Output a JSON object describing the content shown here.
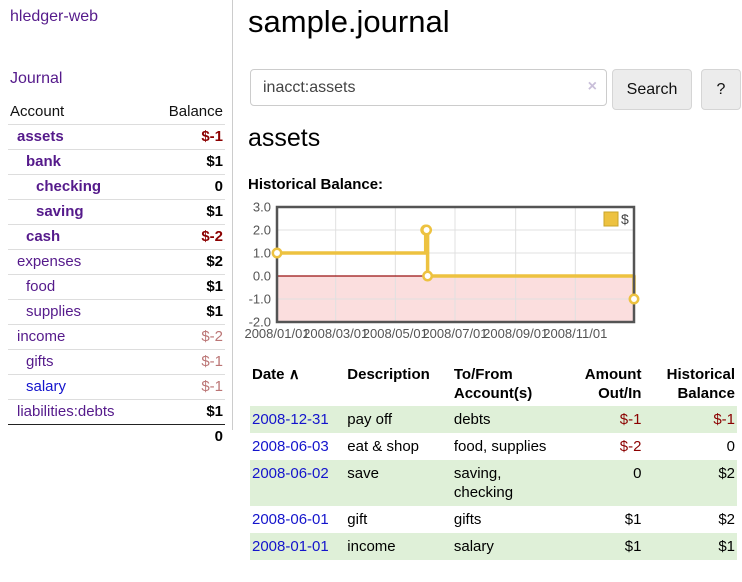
{
  "app": {
    "title": "hledger-web"
  },
  "sidebar": {
    "journal_link": "Journal",
    "accounts": {
      "col_account": "Account",
      "col_balance": "Balance",
      "rows": [
        {
          "name": "assets",
          "balance": "$-1",
          "indent": 1,
          "bold": true,
          "balance_style": "neg-strong"
        },
        {
          "name": "bank",
          "balance": "$1",
          "indent": 2,
          "bold": true,
          "balance_style": "pos"
        },
        {
          "name": "checking",
          "balance": "0",
          "indent": 3,
          "bold": true,
          "balance_style": "pos"
        },
        {
          "name": "saving",
          "balance": "$1",
          "indent": 3,
          "bold": true,
          "balance_style": "pos"
        },
        {
          "name": "cash",
          "balance": "$-2",
          "indent": 2,
          "bold": true,
          "balance_style": "neg-strong"
        },
        {
          "name": "expenses",
          "balance": "$2",
          "indent": 1,
          "bold": false,
          "balance_style": "pos"
        },
        {
          "name": "food",
          "balance": "$1",
          "indent": 2,
          "bold": false,
          "balance_style": "pos"
        },
        {
          "name": "supplies",
          "balance": "$1",
          "indent": 2,
          "bold": false,
          "balance_style": "pos"
        },
        {
          "name": "income",
          "balance": "$-2",
          "indent": 1,
          "bold": false,
          "balance_style": "neg-soft"
        },
        {
          "name": "gifts",
          "balance": "$-1",
          "indent": 2,
          "bold": false,
          "balance_style": "neg-soft"
        },
        {
          "name": "salary",
          "balance": "$-1",
          "indent": 2,
          "bold": false,
          "balance_style": "neg-soft",
          "link_color": "blue"
        },
        {
          "name": "liabilities:debts",
          "balance": "$1",
          "indent": 1,
          "bold": false,
          "balance_style": "pos"
        }
      ],
      "total": "0"
    }
  },
  "main": {
    "title": "sample.journal",
    "search": {
      "value": "inacct:assets",
      "clear_icon": "×",
      "search_button": "Search",
      "help_button": "?"
    },
    "account_heading": "assets",
    "section_label": "Historical Balance:"
  },
  "chart_data": {
    "type": "line",
    "step": true,
    "title": "Historical Balance:",
    "series": [
      {
        "name": "$",
        "color": "#edc240",
        "points": [
          [
            "2008-01-01",
            1
          ],
          [
            "2008-06-01",
            2
          ],
          [
            "2008-06-02",
            2
          ],
          [
            "2008-06-03",
            0
          ],
          [
            "2008-12-31",
            -1
          ]
        ]
      }
    ],
    "xlim": [
      "2008-01-01",
      "2008-12-31"
    ],
    "x_ticks": [
      "2008/01/01",
      "2008/03/01",
      "2008/05/01",
      "2008/07/01",
      "2008/09/01",
      "2008/11/01"
    ],
    "ylim": [
      -2,
      3
    ],
    "y_tick_step": 1,
    "y_tick_labels": [
      "-2.0",
      "-1.0",
      "0.0",
      "1.0",
      "2.0",
      "3.0"
    ],
    "grid": true,
    "legend": {
      "label": "$",
      "position": "top-right"
    },
    "negative_region_fill": "#fbdede",
    "zero_line_color": "#991111",
    "axis_label_color": "#545454"
  },
  "register": {
    "col_date": "Date",
    "sort_icon": "∧",
    "col_description": "Description",
    "col_accounts": "To/From Account(s)",
    "col_amount": "Amount Out/In",
    "col_balance": "Historical Balance",
    "rows": [
      {
        "date": "2008-12-31",
        "description": "pay off",
        "accounts": "debts",
        "amount": "$-1",
        "balance": "$-1",
        "amount_neg": true,
        "balance_neg": true
      },
      {
        "date": "2008-06-03",
        "description": "eat & shop",
        "accounts": "food, supplies",
        "amount": "$-2",
        "balance": "0",
        "amount_neg": true,
        "balance_neg": false
      },
      {
        "date": "2008-06-02",
        "description": "save",
        "accounts": "saving, checking",
        "amount": "0",
        "balance": "$2",
        "amount_neg": false,
        "balance_neg": false
      },
      {
        "date": "2008-06-01",
        "description": "gift",
        "accounts": "gifts",
        "amount": "$1",
        "balance": "$2",
        "amount_neg": false,
        "balance_neg": false
      },
      {
        "date": "2008-01-01",
        "description": "income",
        "accounts": "salary",
        "amount": "$1",
        "balance": "$1",
        "amount_neg": false,
        "balance_neg": false
      }
    ]
  },
  "colors": {
    "link_purple": "#551a8b",
    "link_blue": "#1414cc",
    "negative_strong": "#8b0000",
    "negative_soft": "#bb7575",
    "row_green": "#dff0d8",
    "series_yellow": "#edc240",
    "chart_border": "#545454"
  }
}
